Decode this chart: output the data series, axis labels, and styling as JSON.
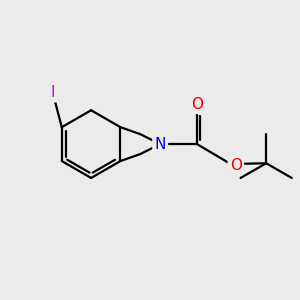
{
  "background_color": "#ebebeb",
  "bond_color": "#000000",
  "bond_width": 1.6,
  "atom_colors": {
    "I": "#cc00cc",
    "N": "#0000ee",
    "O": "#ee0000"
  },
  "font_size_atom": 11
}
